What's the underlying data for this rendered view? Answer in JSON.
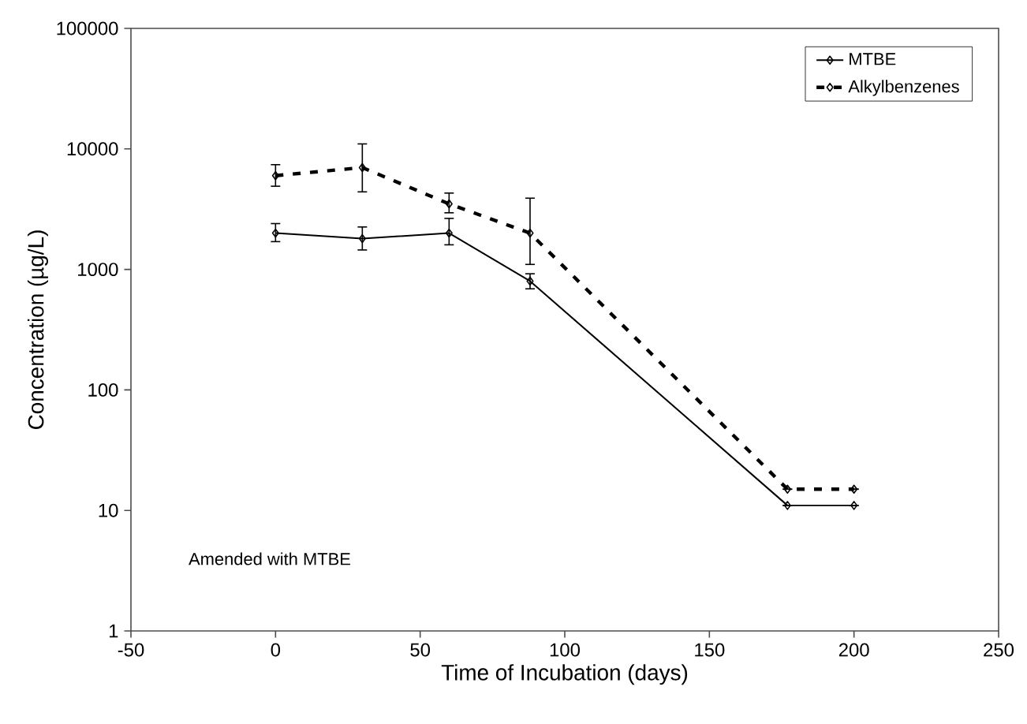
{
  "chart_data": {
    "type": "line",
    "xlabel": "Time of Incubation (days)",
    "ylabel": "Concentration (µg/L)",
    "log": "y",
    "xlim": [
      -50,
      250
    ],
    "xticks": [
      -50,
      0,
      50,
      100,
      150,
      200,
      250
    ],
    "ylim": [
      1,
      100000
    ],
    "yticks": [
      1,
      10,
      100,
      1000,
      10000,
      100000
    ],
    "marker": "diamond",
    "legend": "top right",
    "annotations": [
      "Amended with MTBE"
    ],
    "series": [
      {
        "name": "MTBE",
        "color": "#000000",
        "line_style": "solid",
        "x": [
          0,
          30,
          60,
          88,
          177,
          200
        ],
        "values": [
          2000,
          1800,
          2000,
          800,
          11,
          11
        ],
        "errors": [
          [
            1700,
            2400
          ],
          [
            1450,
            2250
          ],
          [
            1600,
            2650
          ],
          [
            690,
            920
          ],
          null,
          null
        ]
      },
      {
        "name": "Alkylbenzenes",
        "color": "#000000",
        "line_style": "dashed",
        "x": [
          0,
          30,
          60,
          88,
          177,
          200
        ],
        "values": [
          6000,
          7000,
          3500,
          2000,
          15,
          15
        ],
        "errors": [
          [
            4900,
            7400
          ],
          [
            4400,
            11000
          ],
          [
            2950,
            4300
          ],
          [
            1100,
            3900
          ],
          null,
          null
        ]
      }
    ]
  }
}
